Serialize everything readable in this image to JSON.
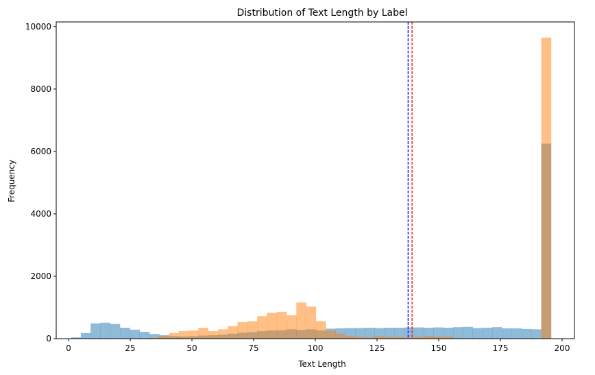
{
  "chart_data": {
    "type": "histogram",
    "title": "Distribution of Text Length by Label",
    "xlabel": "Text Length",
    "ylabel": "Frequency",
    "xlim": [
      -5,
      205
    ],
    "ylim": [
      0,
      10150
    ],
    "xticks": [
      0,
      25,
      50,
      75,
      100,
      125,
      150,
      175,
      200
    ],
    "yticks": [
      0,
      2000,
      4000,
      6000,
      8000,
      10000
    ],
    "bin_start": 1,
    "bin_width": 3.97,
    "grid": false,
    "series": [
      {
        "color": "#1f77b4",
        "opacity": 0.5,
        "values": [
          40,
          180,
          490,
          510,
          470,
          350,
          290,
          220,
          150,
          110,
          80,
          70,
          80,
          100,
          110,
          130,
          160,
          190,
          210,
          240,
          260,
          270,
          300,
          280,
          300,
          260,
          320,
          330,
          340,
          340,
          350,
          340,
          350,
          350,
          360,
          360,
          350,
          360,
          350,
          370,
          380,
          340,
          350,
          370,
          330,
          330,
          310,
          300,
          6250
        ]
      },
      {
        "color": "#ff7f0e",
        "opacity": 0.5,
        "values": [
          0,
          0,
          0,
          0,
          0,
          0,
          0,
          0,
          30,
          90,
          180,
          240,
          260,
          350,
          240,
          300,
          400,
          530,
          560,
          720,
          830,
          860,
          750,
          1160,
          1030,
          560,
          260,
          160,
          80,
          60,
          40,
          80,
          60,
          50,
          40,
          60,
          80,
          70,
          60,
          0,
          0,
          0,
          0,
          0,
          0,
          0,
          0,
          0,
          9650
        ]
      }
    ],
    "vlines": [
      {
        "x": 137.6,
        "color": "#0000ff",
        "style": "dashed"
      },
      {
        "x": 139.2,
        "color": "#ff0000",
        "style": "dashed"
      }
    ]
  }
}
